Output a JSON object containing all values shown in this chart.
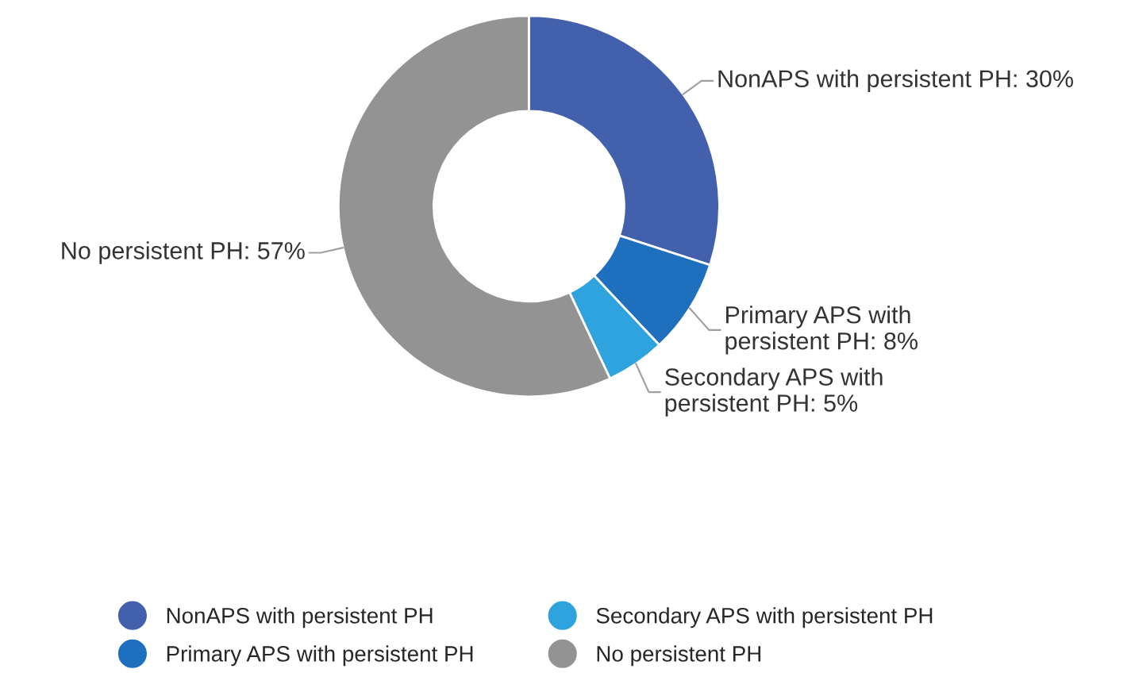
{
  "chart_data": {
    "type": "donut",
    "categories": [
      "NonAPS with persistent PH",
      "Primary APS with persistent PH",
      "Secondary APS with persistent PH",
      "No persistent PH"
    ],
    "values": [
      30,
      8,
      5,
      57
    ],
    "colors": [
      "#4360ac",
      "#1f6fbf",
      "#2ea3de",
      "#939393"
    ],
    "value_labels": [
      "NonAPS with persistent PH: 30%",
      "Primary APS with\npersistent PH: 8%",
      "Secondary APS with\npersistent PH: 5%",
      "No persistent PH: 57%"
    ],
    "legend": "bottom"
  }
}
